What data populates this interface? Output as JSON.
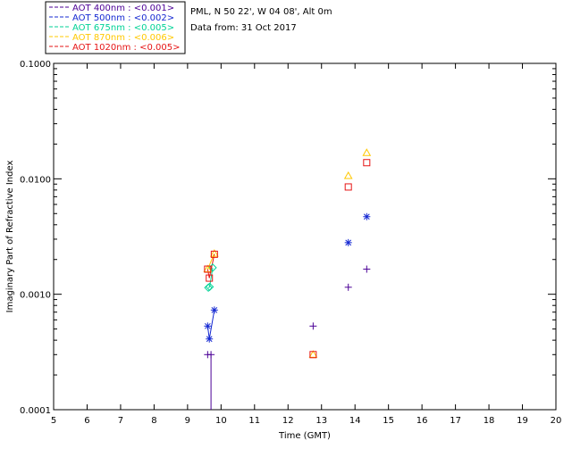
{
  "chart_data": {
    "type": "scatter",
    "title": "",
    "header_lines": [
      "PML, N 50 22', W 04 08', Alt 0m",
      "Data from: 31 Oct 2017"
    ],
    "xlabel": "Time (GMT)",
    "ylabel": "Imaginary Part of Refractive Index",
    "xlim": [
      5,
      20
    ],
    "ylim": [
      0.0001,
      0.1
    ],
    "yscale": "log",
    "x_ticks": [
      5,
      6,
      7,
      8,
      9,
      10,
      11,
      12,
      13,
      14,
      15,
      16,
      17,
      18,
      19,
      20
    ],
    "x_tick_labels": [
      "5",
      "6",
      "7",
      "8",
      "9",
      "10",
      "11",
      "12",
      "13",
      "14",
      "15",
      "16",
      "17",
      "18",
      "19",
      "20"
    ],
    "y_ticks": [
      0.0001,
      0.001,
      0.01,
      0.1
    ],
    "y_tick_labels": [
      "0.0001",
      "0.0010",
      "0.0100",
      "0.1000"
    ],
    "legend_position": "top-left outside",
    "series": [
      {
        "name": "AOT 400nm",
        "legend_label": "AOT  400nm : <0.001>",
        "color": "#4b0096",
        "marker": "plus",
        "points": [
          [
            9.6,
            0.0003
          ],
          [
            9.7,
            0.0003
          ],
          [
            12.75,
            0.00053
          ],
          [
            13.8,
            0.00115
          ],
          [
            14.35,
            0.00165
          ]
        ],
        "line_x_to": 9.7,
        "line_x_from": 9.7
      },
      {
        "name": "AOT 500nm",
        "legend_label": "AOT  500nm : <0.002>",
        "color": "#1428d2",
        "marker": "asterisk",
        "points": [
          [
            9.6,
            0.00053
          ],
          [
            9.65,
            0.00041
          ],
          [
            9.8,
            0.00073
          ],
          [
            13.8,
            0.0028
          ],
          [
            14.35,
            0.0047
          ]
        ],
        "line_points": [
          [
            9.6,
            0.00053
          ],
          [
            9.65,
            0.00041
          ],
          [
            9.8,
            0.00073
          ]
        ]
      },
      {
        "name": "AOT 675nm",
        "legend_label": "AOT  675nm : <0.005>",
        "color": "#00d296",
        "marker": "diamond",
        "points": [
          [
            9.62,
            0.00114
          ],
          [
            9.66,
            0.00116
          ],
          [
            9.75,
            0.0017
          ]
        ],
        "line_points": [
          [
            9.62,
            0.00114
          ],
          [
            9.66,
            0.00116
          ],
          [
            9.75,
            0.0017
          ]
        ]
      },
      {
        "name": "AOT 870nm",
        "legend_label": "AOT  870nm : <0.006>",
        "color": "#ffc800",
        "marker": "triangle",
        "points": [
          [
            9.6,
            0.00165
          ],
          [
            9.8,
            0.00225
          ],
          [
            12.75,
            0.0003
          ],
          [
            13.8,
            0.0106
          ],
          [
            14.35,
            0.0168
          ]
        ],
        "line_points": [
          [
            9.6,
            0.00165
          ],
          [
            9.8,
            0.00225
          ]
        ]
      },
      {
        "name": "AOT 1020nm",
        "legend_label": "AOT 1020nm : <0.005>",
        "color": "#e61414",
        "marker": "square",
        "points": [
          [
            9.6,
            0.00165
          ],
          [
            9.65,
            0.00138
          ],
          [
            9.8,
            0.00222
          ],
          [
            12.75,
            0.0003
          ],
          [
            13.8,
            0.0085
          ],
          [
            14.35,
            0.0138
          ]
        ],
        "line_points": [
          [
            9.6,
            0.00165
          ],
          [
            9.65,
            0.00138
          ],
          [
            9.8,
            0.00222
          ]
        ]
      }
    ]
  }
}
